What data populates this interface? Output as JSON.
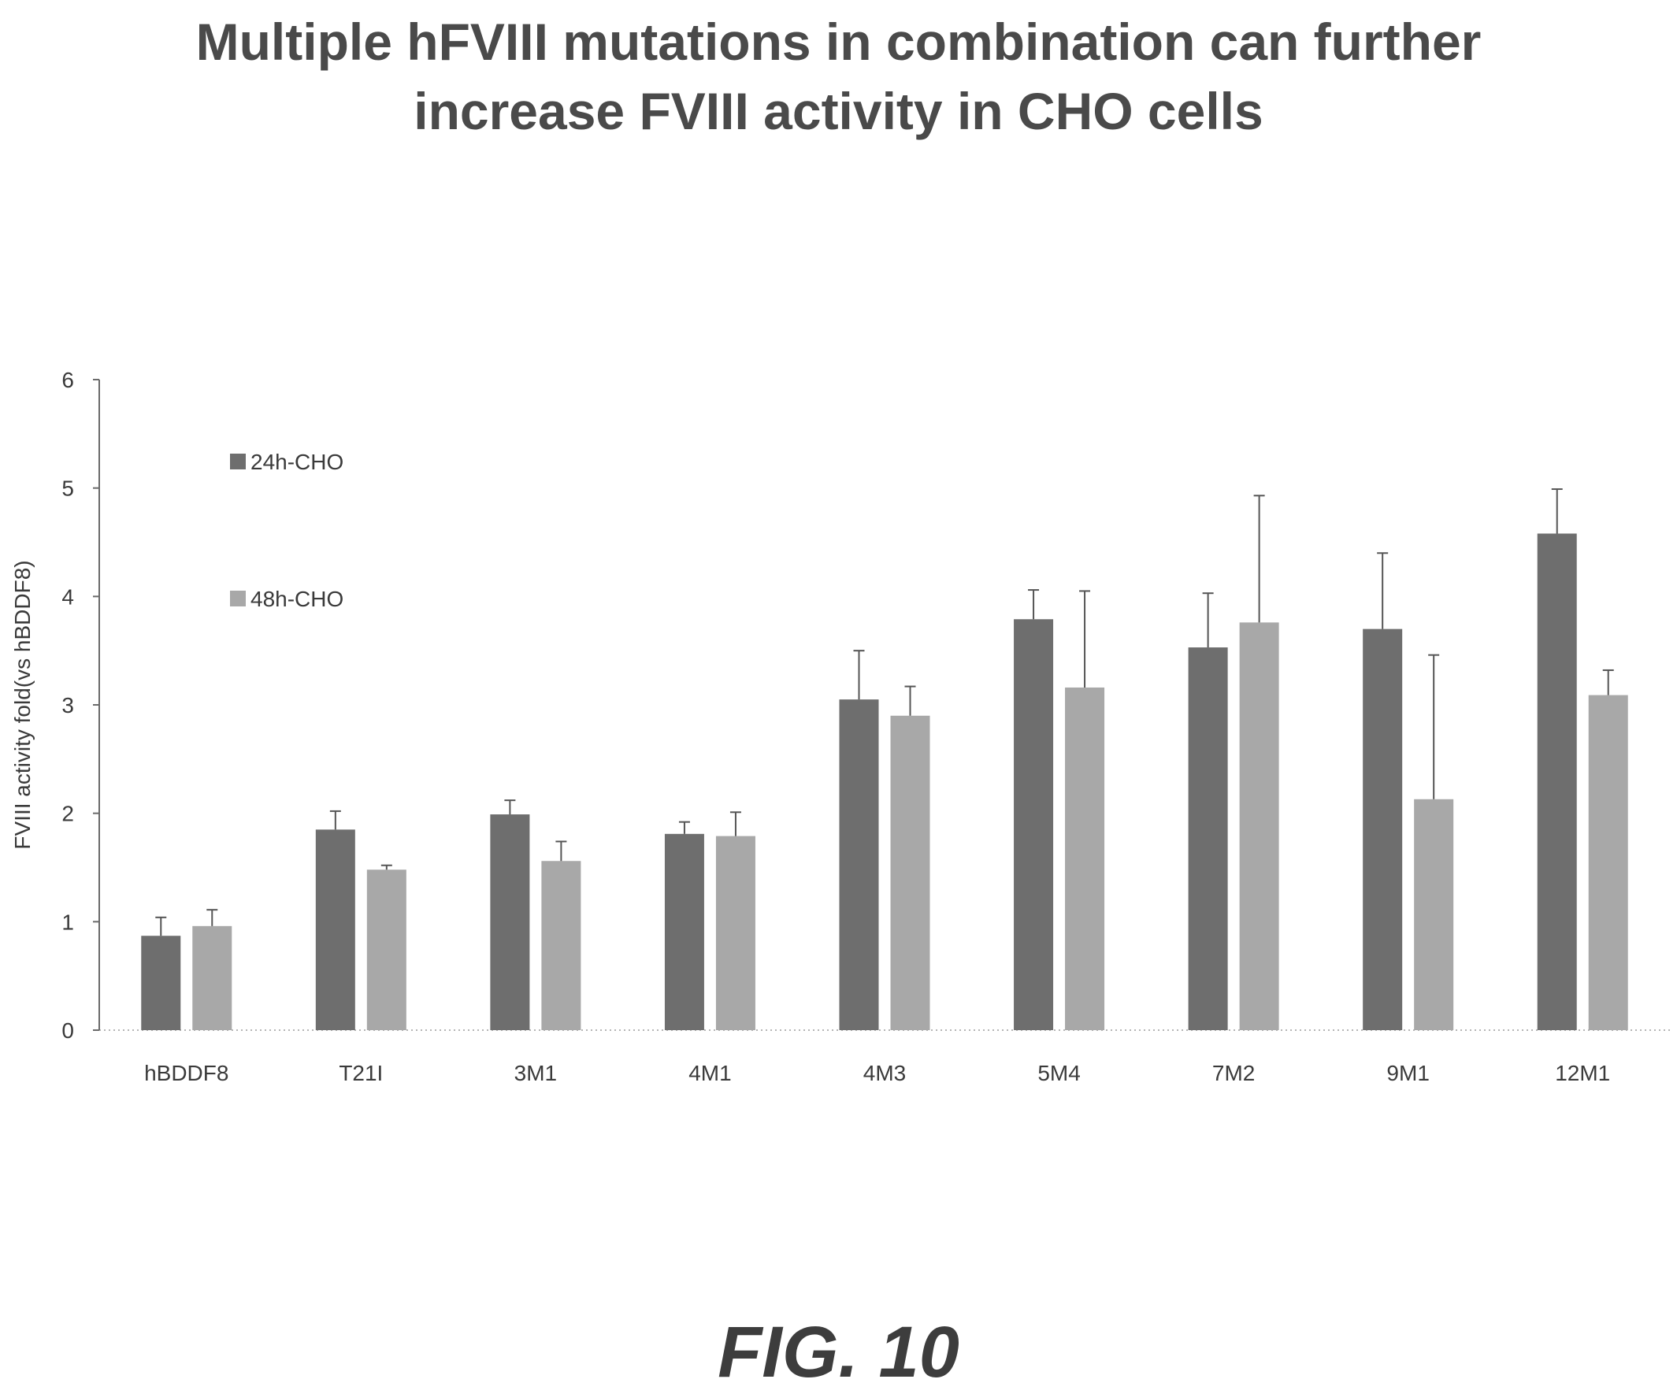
{
  "title_lines": [
    "Multiple hFVIII mutations in combination can further",
    "increase FVIII activity in CHO cells"
  ],
  "figure_label": "FIG. 10",
  "colors": {
    "series_24h": "#6e6e6e",
    "series_48h": "#a8a8a8",
    "axis": "#6a6a6a",
    "text": "#3a3a3a"
  },
  "chart_data": {
    "type": "bar",
    "title": "Multiple hFVIII mutations in combination can further increase FVIII activity in CHO cells",
    "xlabel": "",
    "ylabel": "FVIII activity fold(vs hBDDF8)",
    "ylim": [
      0,
      6
    ],
    "yticks": [
      0,
      1,
      2,
      3,
      4,
      5,
      6
    ],
    "grid": false,
    "legend_position": "top-left",
    "categories": [
      "hBDDF8",
      "T21I",
      "3M1",
      "4M1",
      "4M3",
      "5M4",
      "7M2",
      "9M1",
      "12M1"
    ],
    "series": [
      {
        "name": "24h-CHO",
        "values": [
          0.87,
          1.85,
          1.99,
          1.81,
          3.05,
          3.79,
          3.53,
          3.7,
          4.58
        ],
        "errors": [
          0.17,
          0.17,
          0.13,
          0.11,
          0.45,
          0.27,
          0.5,
          0.7,
          0.41
        ]
      },
      {
        "name": "48h-CHO",
        "values": [
          0.96,
          1.48,
          1.56,
          1.79,
          2.9,
          3.16,
          3.76,
          2.13,
          3.09
        ],
        "errors": [
          0.15,
          0.04,
          0.18,
          0.22,
          0.27,
          0.89,
          1.17,
          1.33,
          0.23
        ]
      }
    ]
  }
}
